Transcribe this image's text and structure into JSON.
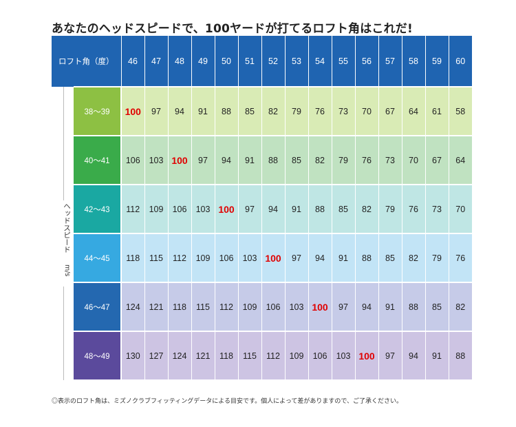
{
  "title": "あなたのヘッドスピードで、100ヤードが打てるロフト角はこれだ!",
  "header": {
    "label": "ロフト角（度）",
    "lofts": [
      "46",
      "47",
      "48",
      "49",
      "50",
      "51",
      "52",
      "53",
      "54",
      "55",
      "56",
      "57",
      "58",
      "59",
      "60"
    ]
  },
  "side_label": "ヘッドスピード",
  "side_unit": "m/s",
  "rows": [
    {
      "speed": "38〜39",
      "label_color": "#8dc043",
      "cell_color": "#d9ebb5",
      "values": [
        "100",
        "97",
        "94",
        "91",
        "88",
        "85",
        "82",
        "79",
        "76",
        "73",
        "70",
        "67",
        "64",
        "61",
        "58"
      ],
      "highlight": 0
    },
    {
      "speed": "40〜41",
      "label_color": "#3aab4a",
      "cell_color": "#c0e2c1",
      "values": [
        "106",
        "103",
        "100",
        "97",
        "94",
        "91",
        "88",
        "85",
        "82",
        "79",
        "76",
        "73",
        "70",
        "67",
        "64"
      ],
      "highlight": 2
    },
    {
      "speed": "42〜43",
      "label_color": "#1aa8a2",
      "cell_color": "#bfe6e4",
      "values": [
        "112",
        "109",
        "106",
        "103",
        "100",
        "97",
        "94",
        "91",
        "88",
        "85",
        "82",
        "79",
        "76",
        "73",
        "70"
      ],
      "highlight": 4
    },
    {
      "speed": "44〜45",
      "label_color": "#36a9e1",
      "cell_color": "#c2e4f6",
      "values": [
        "118",
        "115",
        "112",
        "109",
        "106",
        "103",
        "100",
        "97",
        "94",
        "91",
        "88",
        "85",
        "82",
        "79",
        "76"
      ],
      "highlight": 6
    },
    {
      "speed": "46〜47",
      "label_color": "#2468b0",
      "cell_color": "#c6cbe8",
      "values": [
        "124",
        "121",
        "118",
        "115",
        "112",
        "109",
        "106",
        "103",
        "100",
        "97",
        "94",
        "91",
        "88",
        "85",
        "82"
      ],
      "highlight": 8
    },
    {
      "speed": "48〜49",
      "label_color": "#5b4a9c",
      "cell_color": "#cdc4e3",
      "values": [
        "130",
        "127",
        "124",
        "121",
        "118",
        "115",
        "112",
        "109",
        "106",
        "103",
        "100",
        "97",
        "94",
        "91",
        "88"
      ],
      "highlight": 10
    }
  ],
  "note": "◎表示のロフト角は、ミズノクラブフィッティングデータによる目安です。個人によって差がありますので、ご了承ください。"
}
